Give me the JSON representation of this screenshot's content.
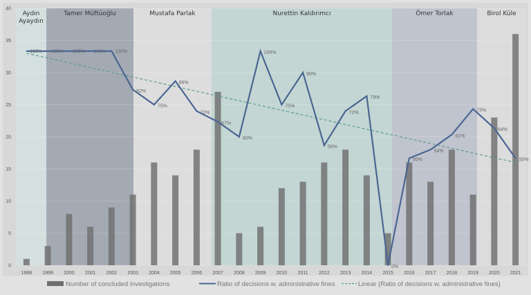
{
  "chart_data": {
    "type": "bar+line",
    "title": "",
    "xlabel": "",
    "ylabel": "",
    "ylim": [
      0,
      40
    ],
    "yticks": [
      0,
      5,
      10,
      15,
      20,
      25,
      30,
      35,
      40
    ],
    "grid": true,
    "legend_position": "bottom",
    "categories": [
      "1998",
      "1999",
      "2000",
      "2001",
      "2002",
      "2003",
      "2004",
      "2005",
      "2006",
      "2007",
      "2008",
      "2009",
      "2010",
      "2011",
      "2012",
      "2013",
      "2014",
      "2015",
      "2016",
      "2017",
      "2018",
      "2019",
      "2020",
      "2021"
    ],
    "series": [
      {
        "name": "Number of concluded investigations",
        "type": "bar",
        "color": "#6f6f6f",
        "values": [
          1,
          3,
          8,
          6,
          9,
          11,
          16,
          14,
          18,
          27,
          5,
          6,
          12,
          13,
          16,
          18,
          14,
          5,
          16,
          13,
          18,
          11,
          23,
          36
        ]
      },
      {
        "name": "Ratio of decisions w. administrative fines",
        "type": "line",
        "color": "#4a6592",
        "unit": "percent",
        "axis_scale_note": "100% plotted at 33.3",
        "values": [
          100,
          100,
          100,
          100,
          100,
          82,
          75,
          86,
          72,
          67,
          60,
          100,
          75,
          90,
          56,
          72,
          79,
          0,
          50,
          54,
          61,
          73,
          64,
          50
        ],
        "labels": [
          "100%",
          "100%",
          "100%",
          "100%",
          "100%",
          "82%",
          "75%",
          "86%",
          "72%",
          "67%",
          "60%",
          "100%",
          "75%",
          "90%",
          "56%",
          "72%",
          "79%",
          "0%",
          "50%",
          "54%",
          "61%",
          "73%",
          "64%",
          "50%"
        ]
      },
      {
        "name": "Linear (Ratio of decisions w. administrative fines)",
        "type": "trendline",
        "color": "#5a9a8f",
        "start": 33,
        "end": 16
      }
    ],
    "periods": [
      {
        "label": "Aydın Ayaydın",
        "line1": "Aydın",
        "line2": "Ayaydın",
        "from": "1998",
        "to": "1998",
        "color": "#d4e0df"
      },
      {
        "label": "Tamer Müftüoğlu",
        "from": "1999",
        "to": "2003",
        "color": "#a4aab4"
      },
      {
        "label": "Mustafa Parlak",
        "from": "2003",
        "to": "2006",
        "color": "#dddddd"
      },
      {
        "label": "Nurettin Kaldırımcı",
        "from": "2007",
        "to": "2015",
        "color": "#c3d6d3"
      },
      {
        "label": "Ömer Torlak",
        "from": "2015",
        "to": "2019",
        "color": "#c0c4ce"
      },
      {
        "label": "Birol Küle",
        "from": "2020",
        "to": "2021",
        "color": "#dcdcdc"
      }
    ]
  }
}
